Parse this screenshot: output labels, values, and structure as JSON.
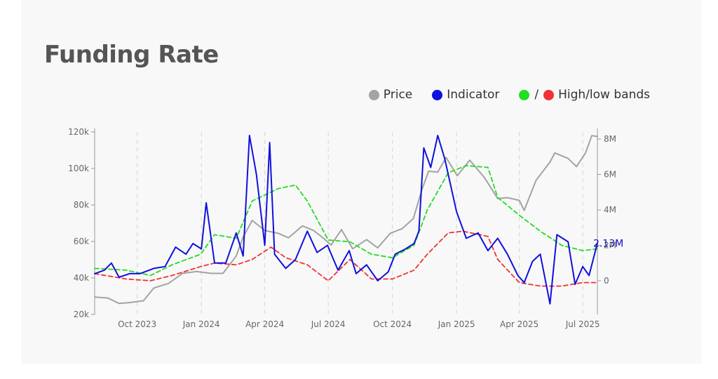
{
  "header": {
    "title": "Funding Rate"
  },
  "legend": {
    "items": [
      {
        "label": "Price",
        "color": "#a3a3a3"
      },
      {
        "label": "Indicator",
        "color": "#1010e0"
      }
    ],
    "bands_label": "High/low bands",
    "bands_sep": "/",
    "bands_colors": [
      "#22dd22",
      "#ee3333"
    ]
  },
  "chart_data": {
    "type": "line",
    "xlabels": [
      "Oct 2023",
      "Jan 2024",
      "Apr 2024",
      "Jul 2024",
      "Oct 2024",
      "Jan 2025",
      "Apr 2025",
      "Jul 2025"
    ],
    "x_range": [
      "2023-08-01",
      "2025-07-22"
    ],
    "y_left": {
      "ticks": [
        "20k",
        "40k",
        "60k",
        "80k",
        "100k",
        "120k"
      ],
      "range": [
        20000,
        120000
      ]
    },
    "y_right": {
      "ticks": [
        "0",
        "2M",
        "4M",
        "6M",
        "8M"
      ],
      "range": [
        -1900000,
        8400000
      ]
    },
    "grid": "vertical dashed",
    "annotation": "2.13M",
    "series": [
      {
        "name": "Price",
        "axis": "left",
        "color": "#a3a3a3",
        "x": [
          "2023-08-01",
          "2023-08-20",
          "2023-09-05",
          "2023-09-20",
          "2023-10-10",
          "2023-10-25",
          "2023-11-15",
          "2023-12-05",
          "2023-12-25",
          "2024-01-15",
          "2024-02-01",
          "2024-02-20",
          "2024-03-01",
          "2024-03-14",
          "2024-04-01",
          "2024-04-20",
          "2024-05-05",
          "2024-05-25",
          "2024-06-10",
          "2024-06-25",
          "2024-07-05",
          "2024-07-20",
          "2024-08-05",
          "2024-08-25",
          "2024-09-10",
          "2024-09-28",
          "2024-10-15",
          "2024-10-31",
          "2024-11-12",
          "2024-11-22",
          "2024-12-05",
          "2024-12-17",
          "2025-01-02",
          "2025-01-20",
          "2025-02-10",
          "2025-03-01",
          "2025-03-15",
          "2025-04-01",
          "2025-04-08",
          "2025-04-25",
          "2025-05-15",
          "2025-05-22",
          "2025-06-10",
          "2025-06-22",
          "2025-07-05",
          "2025-07-14",
          "2025-07-22"
        ],
        "y": [
          29500,
          29000,
          26000,
          26500,
          27500,
          34500,
          37000,
          42500,
          43500,
          42500,
          42500,
          52000,
          62500,
          71500,
          66000,
          64500,
          62000,
          68500,
          66000,
          61500,
          58000,
          66500,
          56000,
          61000,
          56500,
          64500,
          67000,
          72500,
          88000,
          98500,
          98000,
          106000,
          96000,
          104500,
          95000,
          83500,
          84000,
          82500,
          77000,
          93500,
          103500,
          108500,
          105500,
          101000,
          108500,
          118000,
          117500
        ]
      },
      {
        "name": "Indicator",
        "axis": "right",
        "color": "#1010e0",
        "x": [
          "2023-08-01",
          "2023-08-15",
          "2023-08-25",
          "2023-09-05",
          "2023-09-20",
          "2023-10-05",
          "2023-10-25",
          "2023-11-10",
          "2023-11-25",
          "2023-12-10",
          "2023-12-20",
          "2024-01-01",
          "2024-01-08",
          "2024-01-20",
          "2024-02-05",
          "2024-02-20",
          "2024-03-01",
          "2024-03-10",
          "2024-03-20",
          "2024-04-01",
          "2024-04-08",
          "2024-04-15",
          "2024-05-01",
          "2024-05-15",
          "2024-06-01",
          "2024-06-15",
          "2024-06-30",
          "2024-07-15",
          "2024-07-31",
          "2024-08-10",
          "2024-08-25",
          "2024-09-10",
          "2024-09-25",
          "2024-10-05",
          "2024-10-20",
          "2024-11-01",
          "2024-11-08",
          "2024-11-15",
          "2024-11-25",
          "2024-12-05",
          "2024-12-15",
          "2025-01-01",
          "2025-01-15",
          "2025-02-01",
          "2025-02-15",
          "2025-03-01",
          "2025-03-15",
          "2025-03-30",
          "2025-04-08",
          "2025-04-20",
          "2025-05-01",
          "2025-05-15",
          "2025-05-25",
          "2025-06-10",
          "2025-06-20",
          "2025-07-01",
          "2025-07-10",
          "2025-07-22"
        ],
        "y": [
          400000,
          600000,
          1000000,
          200000,
          400000,
          400000,
          700000,
          800000,
          1900000,
          1500000,
          2100000,
          1800000,
          4400000,
          1000000,
          1000000,
          2700000,
          1400000,
          8200000,
          6000000,
          2000000,
          7800000,
          1500000,
          700000,
          1200000,
          2800000,
          1600000,
          2000000,
          600000,
          1700000,
          400000,
          900000,
          0,
          500000,
          1500000,
          1800000,
          2100000,
          2800000,
          7500000,
          6400000,
          8200000,
          6900000,
          3900000,
          2400000,
          2700000,
          1700000,
          2400000,
          1500000,
          300000,
          -100000,
          1100000,
          1500000,
          -1300000,
          2600000,
          2200000,
          -200000,
          800000,
          300000,
          2130000
        ]
      },
      {
        "name": "",
        "axis": "right",
        "color": "#22dd22",
        "dashed": true,
        "x": [
          "2023-08-01",
          "2023-09-15",
          "2023-10-20",
          "2023-11-20",
          "2023-12-31",
          "2024-01-20",
          "2024-02-20",
          "2024-03-14",
          "2024-04-20",
          "2024-05-15",
          "2024-06-01",
          "2024-07-01",
          "2024-08-01",
          "2024-09-01",
          "2024-10-01",
          "2024-11-01",
          "2024-11-20",
          "2024-12-20",
          "2025-01-15",
          "2025-02-15",
          "2025-03-01",
          "2025-04-01",
          "2025-05-01",
          "2025-06-01",
          "2025-07-01",
          "2025-07-22"
        ],
        "y": [
          700000,
          600000,
          300000,
          900000,
          1500000,
          2600000,
          2400000,
          4500000,
          5200000,
          5400000,
          4500000,
          2300000,
          2200000,
          1500000,
          1300000,
          2000000,
          4000000,
          6100000,
          6500000,
          6400000,
          4700000,
          3700000,
          2800000,
          2000000,
          1700000,
          1800000
        ]
      },
      {
        "name": "",
        "axis": "right",
        "color": "#ee3333",
        "dashed": true,
        "x": [
          "2023-08-01",
          "2023-09-15",
          "2023-10-20",
          "2023-11-20",
          "2023-12-31",
          "2024-01-20",
          "2024-02-20",
          "2024-03-14",
          "2024-04-10",
          "2024-05-01",
          "2024-06-01",
          "2024-07-01",
          "2024-08-01",
          "2024-09-01",
          "2024-10-01",
          "2024-11-01",
          "2024-11-20",
          "2024-12-20",
          "2025-01-10",
          "2025-02-15",
          "2025-03-01",
          "2025-04-01",
          "2025-05-01",
          "2025-06-01",
          "2025-07-01",
          "2025-07-22"
        ],
        "y": [
          400000,
          100000,
          0,
          300000,
          800000,
          1000000,
          900000,
          1200000,
          1900000,
          1300000,
          900000,
          0,
          1200000,
          100000,
          100000,
          600000,
          1500000,
          2700000,
          2800000,
          2500000,
          1200000,
          -100000,
          -300000,
          -300000,
          -100000,
          -100000
        ]
      }
    ]
  }
}
